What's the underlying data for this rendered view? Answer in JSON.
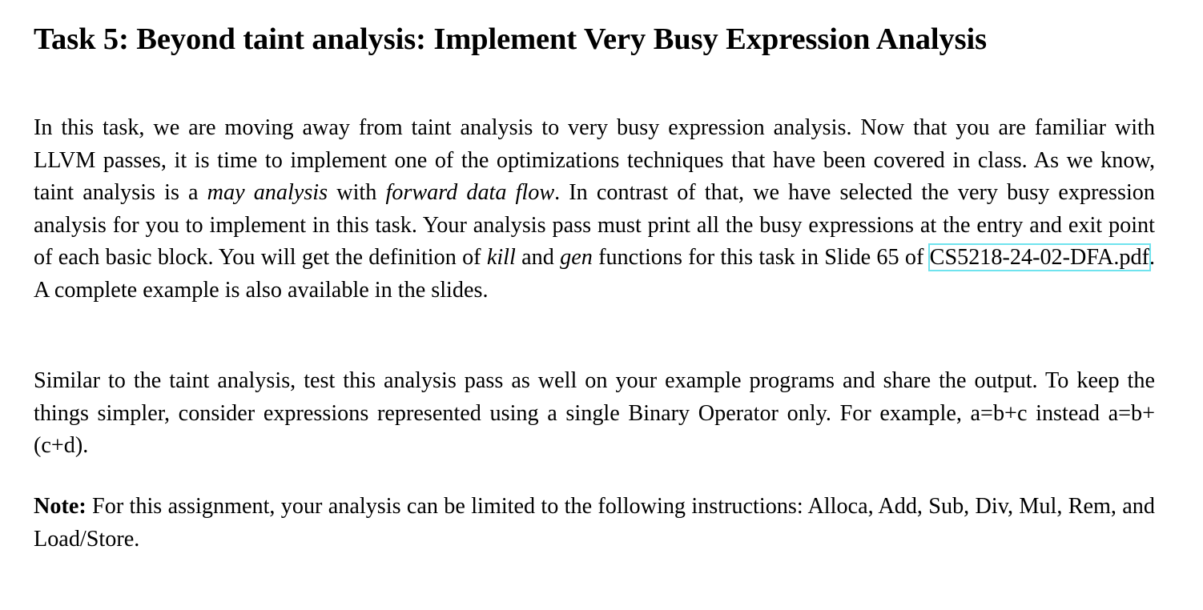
{
  "title": "Task 5: Beyond taint analysis: Implement Very Busy Expression Analysis",
  "paragraph1": {
    "t1": "In this task, we are moving away from taint analysis to very busy expression analysis.  Now that you are familiar with LLVM passes, it is time to implement one of the optimizations techniques that have been covered in class.  As we know, taint analysis is a ",
    "em1": "may analysis",
    "t2": " with ",
    "em2": "forward data flow",
    "t3": ".  In contrast of that, we have selected the very busy expression analysis for you to implement in this task.  Your analysis pass must print all the busy expressions at the entry and exit point of each basic block. You will get the definition of ",
    "em3": "kill",
    "t4": " and ",
    "em4": "gen",
    "t5": " functions for this task in Slide 65 of ",
    "link": "CS5218-24-02-DFA.pdf",
    "t6": ".  A complete example is also available in the slides."
  },
  "paragraph2": "Similar to the taint analysis, test this analysis pass as well on your example programs and share the output. To keep the things simpler, consider expressions represented using a single Binary Operator only.  For example, a=b+c instead a=b+(c+d).",
  "paragraph3": {
    "label": "Note:",
    "text": " For this assignment, your analysis can be limited to the following instructions: Alloca, Add, Sub, Div, Mul, Rem, and Load/Store."
  }
}
